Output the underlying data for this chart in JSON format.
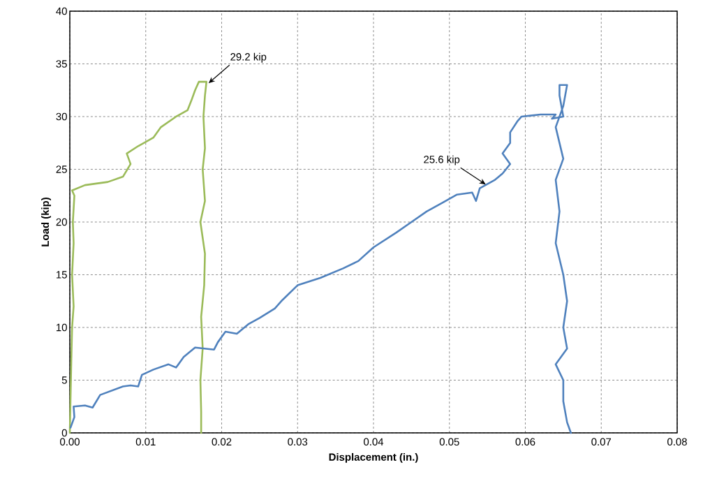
{
  "chart_data": {
    "type": "line",
    "xlabel": "Displacement (in.)",
    "ylabel": "Load (kip)",
    "xlim": [
      0,
      0.08
    ],
    "ylim": [
      0,
      40
    ],
    "xticks": [
      {
        "value": 0,
        "label": "0.00"
      },
      {
        "value": 0.01,
        "label": "0.01"
      },
      {
        "value": 0.02,
        "label": "0.02"
      },
      {
        "value": 0.03,
        "label": "0.03"
      },
      {
        "value": 0.04,
        "label": "0.04"
      },
      {
        "value": 0.05,
        "label": "0.05"
      },
      {
        "value": 0.06,
        "label": "0.06"
      },
      {
        "value": 0.07,
        "label": "0.07"
      },
      {
        "value": 0.08,
        "label": "0.08"
      }
    ],
    "yticks": [
      0,
      5,
      10,
      15,
      20,
      25,
      30,
      35,
      40
    ],
    "grid": true,
    "marker": "none",
    "line_style": "solid",
    "annotations": [
      {
        "text": "29.2 kip",
        "x": 0.018,
        "y": 33.1
      },
      {
        "text": "25.6 kip",
        "x": 0.0545,
        "y": 23.5
      }
    ],
    "series": [
      {
        "color": "#9bbb59",
        "x": [
          0,
          0.0002,
          0.0003,
          0.0005,
          0.0003,
          0.0005,
          0.0004,
          0.0006,
          0.0003,
          0.002,
          0.005,
          0.007,
          0.008,
          0.0075,
          0.009,
          0.011,
          0.012,
          0.014,
          0.0155,
          0.016,
          0.0165,
          0.017,
          0.018,
          0.0178,
          0.0176,
          0.0178,
          0.0175,
          0.0178,
          0.0172,
          0.0178,
          0.0177,
          0.0173,
          0.0175,
          0.0172,
          0.0173,
          0.0173
        ],
        "values": [
          0,
          7,
          10,
          12,
          15,
          18,
          20,
          22.5,
          23,
          23.5,
          23.8,
          24.3,
          25.5,
          26.5,
          27.2,
          28,
          29,
          30,
          30.6,
          31.5,
          32.5,
          33.3,
          33.3,
          32,
          30,
          27,
          25,
          22,
          20,
          17,
          14,
          11,
          8,
          5,
          2,
          0
        ]
      },
      {
        "color": "#4f81bd",
        "x": [
          0.0001,
          0.0006,
          0.0005,
          0.002,
          0.003,
          0.004,
          0.007,
          0.008,
          0.009,
          0.0095,
          0.011,
          0.013,
          0.014,
          0.015,
          0.0165,
          0.019,
          0.0195,
          0.0205,
          0.022,
          0.0235,
          0.025,
          0.027,
          0.028,
          0.03,
          0.033,
          0.036,
          0.038,
          0.04,
          0.043,
          0.045,
          0.047,
          0.049,
          0.051,
          0.053,
          0.0535,
          0.054,
          0.056,
          0.057,
          0.058,
          0.057,
          0.058,
          0.058,
          0.059,
          0.0595,
          0.062,
          0.064,
          0.0635,
          0.065,
          0.0645,
          0.0645,
          0.0655,
          0.065,
          0.064,
          0.065,
          0.064,
          0.0645,
          0.064,
          0.065,
          0.0655,
          0.065,
          0.0655,
          0.064,
          0.065,
          0.065,
          0.0655,
          0.066
        ],
        "values": [
          0.5,
          1.5,
          2.5,
          2.6,
          2.4,
          3.6,
          4.4,
          4.5,
          4.4,
          5.5,
          6,
          6.5,
          6.2,
          7.2,
          8.1,
          7.9,
          8.6,
          9.6,
          9.4,
          10.3,
          10.9,
          11.8,
          12.6,
          14,
          14.7,
          15.6,
          16.3,
          17.6,
          19,
          20,
          21,
          21.8,
          22.6,
          22.8,
          22,
          23.2,
          24,
          24.6,
          25.5,
          26.5,
          27.5,
          28.5,
          29.6,
          30,
          30.2,
          30.2,
          29.8,
          30,
          32,
          33,
          33,
          31,
          29,
          26,
          24,
          21,
          18,
          15,
          12.5,
          10,
          8,
          6.5,
          5,
          3,
          1,
          0
        ]
      }
    ]
  }
}
